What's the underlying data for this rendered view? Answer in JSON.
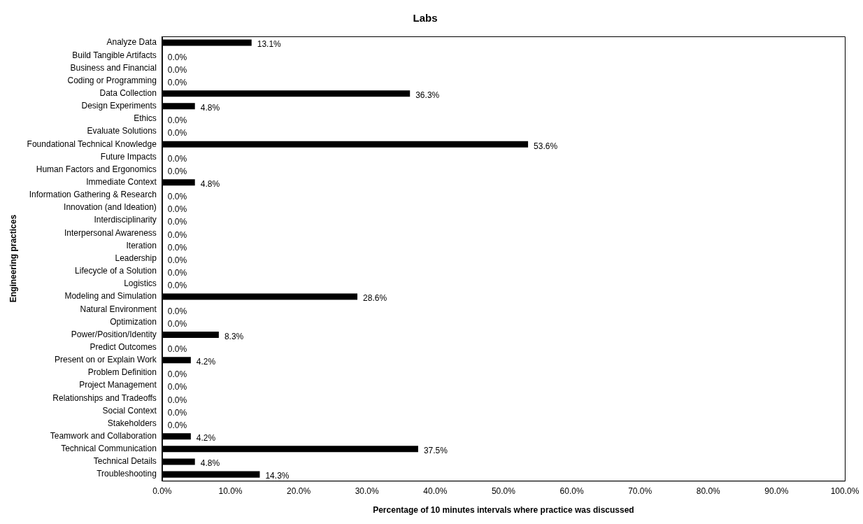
{
  "chart_data": {
    "type": "bar",
    "orientation": "horizontal",
    "title": "Labs",
    "xlabel": "Percentage of 10 minutes intervals where practice was discussed",
    "ylabel": "Engineering practices",
    "categories": [
      "Analyze Data",
      "Build Tangible Artifacts",
      "Business and Financial",
      "Coding or Programming",
      "Data Collection",
      "Design Experiments",
      "Ethics",
      "Evaluate Solutions",
      "Foundational Technical Knowledge",
      "Future Impacts",
      "Human Factors and Ergonomics",
      "Immediate Context",
      "Information Gathering & Research",
      "Innovation (and Ideation)",
      "Interdisciplinarity",
      "Interpersonal Awareness",
      "Iteration",
      "Leadership",
      "Lifecycle of a Solution",
      "Logistics",
      "Modeling and Simulation",
      "Natural Environment",
      "Optimization",
      "Power/Position/Identity",
      "Predict Outcomes",
      "Present on or Explain Work",
      "Problem Definition",
      "Project Management",
      "Relationships and Tradeoffs",
      "Social Context",
      "Stakeholders",
      "Teamwork and Collaboration",
      "Technical Communication",
      "Technical Details",
      "Troubleshooting"
    ],
    "values": [
      13.1,
      0,
      0,
      0,
      36.3,
      4.8,
      0,
      0,
      53.6,
      0,
      0,
      4.8,
      0,
      0,
      0,
      0,
      0,
      0,
      0,
      0,
      28.6,
      0,
      0,
      8.3,
      0,
      4.2,
      0,
      0,
      0,
      0,
      0,
      4.2,
      37.5,
      4.8,
      14.3
    ],
    "value_labels": [
      "13.1%",
      "0.0%",
      "0.0%",
      "0.0%",
      "36.3%",
      "4.8%",
      "0.0%",
      "0.0%",
      "53.6%",
      "0.0%",
      "0.0%",
      "4.8%",
      "0.0%",
      "0.0%",
      "0.0%",
      "0.0%",
      "0.0%",
      "0.0%",
      "0.0%",
      "0.0%",
      "28.6%",
      "0.0%",
      "0.0%",
      "8.3%",
      "0.0%",
      "4.2%",
      "0.0%",
      "0.0%",
      "0.0%",
      "0.0%",
      "0.0%",
      "4.2%",
      "37.5%",
      "4.8%",
      "14.3%"
    ],
    "color": "#000000",
    "grid": false,
    "legend": false,
    "xlim": [
      0,
      100
    ],
    "xticks": [
      {
        "value": 0,
        "label": "0.0%"
      },
      {
        "value": 10,
        "label": "10.0%"
      },
      {
        "value": 20,
        "label": "20.0%"
      },
      {
        "value": 30,
        "label": "30.0%"
      },
      {
        "value": 40,
        "label": "40.0%"
      },
      {
        "value": 50,
        "label": "50.0%"
      },
      {
        "value": 60,
        "label": "60.0%"
      },
      {
        "value": 70,
        "label": "70.0%"
      },
      {
        "value": 80,
        "label": "80.0%"
      },
      {
        "value": 90,
        "label": "90.0%"
      },
      {
        "value": 100,
        "label": "100.0%"
      }
    ]
  }
}
